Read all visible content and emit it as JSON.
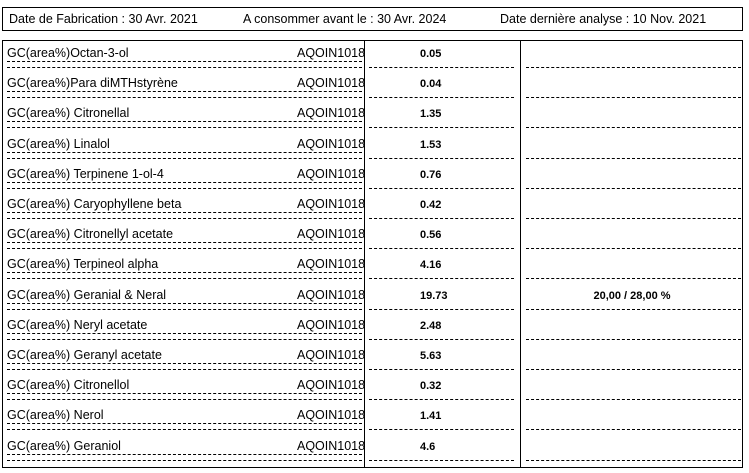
{
  "header": {
    "manufacture_date": "Date de Fabrication : 30 Avr. 2021",
    "best_before": "A consommer avant le : 30 Avr. 2024",
    "last_analysis": "Date dernière analyse : 10 Nov. 2021"
  },
  "rows": [
    {
      "name": "GC(area%)Octan-3-ol",
      "method": "AQOIN1018",
      "value": "0.05",
      "spec": ""
    },
    {
      "name": "GC(area%)Para diMTHstyrène",
      "method": "AQOIN1018",
      "value": "0.04",
      "spec": ""
    },
    {
      "name": "GC(area%) Citronellal",
      "method": "AQOIN1018",
      "value": "1.35",
      "spec": ""
    },
    {
      "name": "GC(area%) Linalol",
      "method": "AQOIN1018",
      "value": "1.53",
      "spec": ""
    },
    {
      "name": "GC(area%) Terpinene 1-ol-4",
      "method": "AQOIN1018",
      "value": "0.76",
      "spec": ""
    },
    {
      "name": "GC(area%) Caryophyllene beta",
      "method": "AQOIN1018",
      "value": "0.42",
      "spec": ""
    },
    {
      "name": "GC(area%) Citronellyl acetate",
      "method": "AQOIN1018",
      "value": "0.56",
      "spec": ""
    },
    {
      "name": "GC(area%) Terpineol alpha",
      "method": "AQOIN1018",
      "value": "4.16",
      "spec": ""
    },
    {
      "name": "GC(area%) Geranial & Neral",
      "method": "AQOIN1018",
      "value": "19.73",
      "spec": "20,00 / 28,00 %"
    },
    {
      "name": "GC(area%) Neryl acetate",
      "method": "AQOIN1018",
      "value": "2.48",
      "spec": ""
    },
    {
      "name": "GC(area%) Geranyl acetate",
      "method": "AQOIN1018",
      "value": "5.63",
      "spec": ""
    },
    {
      "name": "GC(area%) Citronellol",
      "method": "AQOIN1018",
      "value": "0.32",
      "spec": ""
    },
    {
      "name": "GC(area%) Nerol",
      "method": "AQOIN1018",
      "value": "1.41",
      "spec": ""
    },
    {
      "name": "GC(area%) Geraniol",
      "method": "AQOIN1018",
      "value": "4.6",
      "spec": ""
    }
  ]
}
